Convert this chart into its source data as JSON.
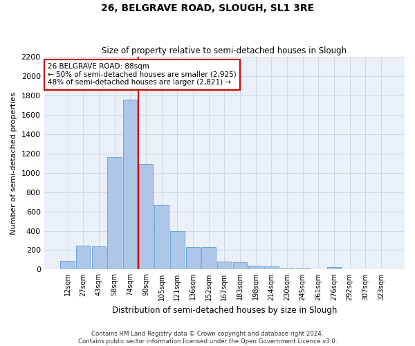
{
  "title": "26, BELGRAVE ROAD, SLOUGH, SL1 3RE",
  "subtitle": "Size of property relative to semi-detached houses in Slough",
  "xlabel": "Distribution of semi-detached houses by size in Slough",
  "ylabel": "Number of semi-detached properties",
  "bar_labels": [
    "12sqm",
    "27sqm",
    "43sqm",
    "58sqm",
    "74sqm",
    "90sqm",
    "105sqm",
    "121sqm",
    "136sqm",
    "152sqm",
    "167sqm",
    "183sqm",
    "198sqm",
    "214sqm",
    "230sqm",
    "245sqm",
    "261sqm",
    "276sqm",
    "292sqm",
    "307sqm",
    "323sqm"
  ],
  "bar_values": [
    90,
    245,
    240,
    1160,
    1760,
    1090,
    670,
    400,
    235,
    235,
    85,
    75,
    40,
    30,
    10,
    10,
    5,
    25,
    0,
    0,
    0
  ],
  "bar_color": "#aec6e8",
  "bar_edge_color": "#5a9fd4",
  "annotation_text": "26 BELGRAVE ROAD: 88sqm\n← 50% of semi-detached houses are smaller (2,925)\n48% of semi-detached houses are larger (2,821) →",
  "annotation_box_color": "#ffffff",
  "annotation_box_edge": "#cc0000",
  "vline_color": "#cc0000",
  "ylim": [
    0,
    2200
  ],
  "yticks": [
    0,
    200,
    400,
    600,
    800,
    1000,
    1200,
    1400,
    1600,
    1800,
    2000,
    2200
  ],
  "grid_color": "#d0d8e8",
  "background_color": "#eaf0f8",
  "footer1": "Contains HM Land Registry data © Crown copyright and database right 2024.",
  "footer2": "Contains public sector information licensed under the Open Government Licence v3.0."
}
